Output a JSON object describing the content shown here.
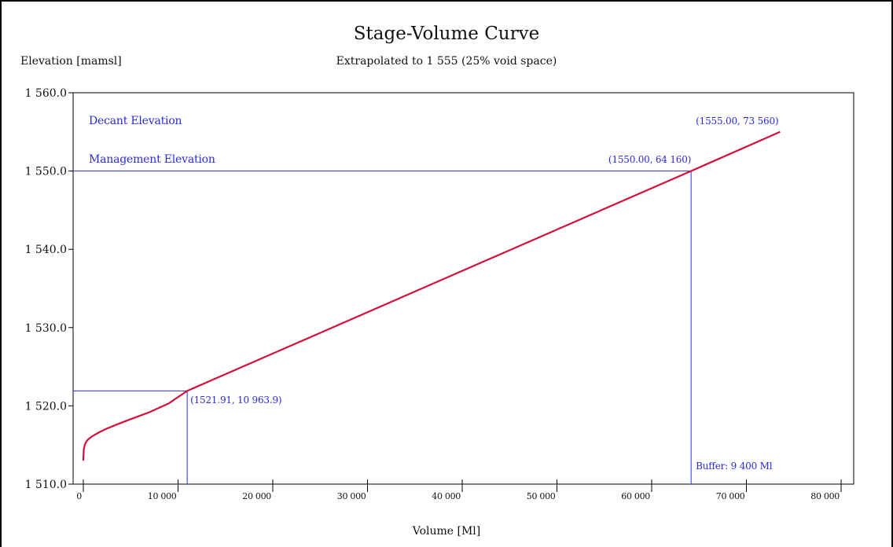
{
  "chart_data": {
    "type": "line",
    "title": "Stage-Volume Curve",
    "subtitle": "Extrapolated to 1 555 (25% void space)",
    "xlabel": "Volume [Ml]",
    "ylabel": "Elevation [mamsl]",
    "xlim": [
      0,
      80000
    ],
    "ylim": [
      1510,
      1560
    ],
    "x_ticks": [
      {
        "value": 0,
        "label": "0"
      },
      {
        "value": 10000,
        "label": "10 000"
      },
      {
        "value": 20000,
        "label": "20 000"
      },
      {
        "value": 30000,
        "label": "30 000"
      },
      {
        "value": 40000,
        "label": "40 000"
      },
      {
        "value": 50000,
        "label": "50 000"
      },
      {
        "value": 60000,
        "label": "60 000"
      },
      {
        "value": 70000,
        "label": "70 000"
      },
      {
        "value": 80000,
        "label": "80 000"
      }
    ],
    "y_ticks": [
      {
        "value": 1510,
        "label": "1 510.0"
      },
      {
        "value": 1520,
        "label": "1 520.0"
      },
      {
        "value": 1530,
        "label": "1 530.0"
      },
      {
        "value": 1540,
        "label": "1 540.0"
      },
      {
        "value": 1550,
        "label": "1 550.0"
      },
      {
        "value": 1560,
        "label": "1 560.0"
      }
    ],
    "grid": false,
    "series": [
      {
        "color": "#d0103a",
        "points": [
          [
            0,
            1513.0
          ],
          [
            50,
            1514.4
          ],
          [
            150,
            1515.0
          ],
          [
            300,
            1515.4
          ],
          [
            500,
            1515.7
          ],
          [
            800,
            1516.0
          ],
          [
            1200,
            1516.3
          ],
          [
            1800,
            1516.7
          ],
          [
            2500,
            1517.1
          ],
          [
            3500,
            1517.6
          ],
          [
            5000,
            1518.3
          ],
          [
            7000,
            1519.2
          ],
          [
            9000,
            1520.3
          ],
          [
            10963.9,
            1521.91
          ],
          [
            64160,
            1550.0
          ],
          [
            73560,
            1555.0
          ]
        ]
      }
    ],
    "reference_lines": [
      {
        "type": "horizontal",
        "y": 1521.91,
        "x_from": 0,
        "x_to": 10963.9,
        "color": "#2a2adf"
      },
      {
        "type": "vertical",
        "x": 10963.9,
        "y_from": 1510,
        "y_to": 1521.91,
        "color": "#2a2adf"
      },
      {
        "type": "horizontal",
        "y": 1550.0,
        "x_from": 0,
        "x_to": 64160,
        "color": "#2a2adf"
      },
      {
        "type": "vertical",
        "x": 64160,
        "y_from": 1510,
        "y_to": 1550.0,
        "color": "#2a2adf"
      }
    ],
    "annotations": [
      {
        "text": "Decant Elevation",
        "color": "#2a2adf"
      },
      {
        "text": "Management Elevation",
        "color": "#2a2adf"
      },
      {
        "text": "(1555.00, 73 560)",
        "color": "#2a2adf"
      },
      {
        "text": "(1550.00, 64 160)",
        "color": "#2a2adf"
      },
      {
        "text": "(1521.91, 10 963.9)",
        "color": "#2a2adf"
      },
      {
        "text": "Buffer: 9 400 Ml",
        "color": "#2a2adf"
      }
    ]
  }
}
